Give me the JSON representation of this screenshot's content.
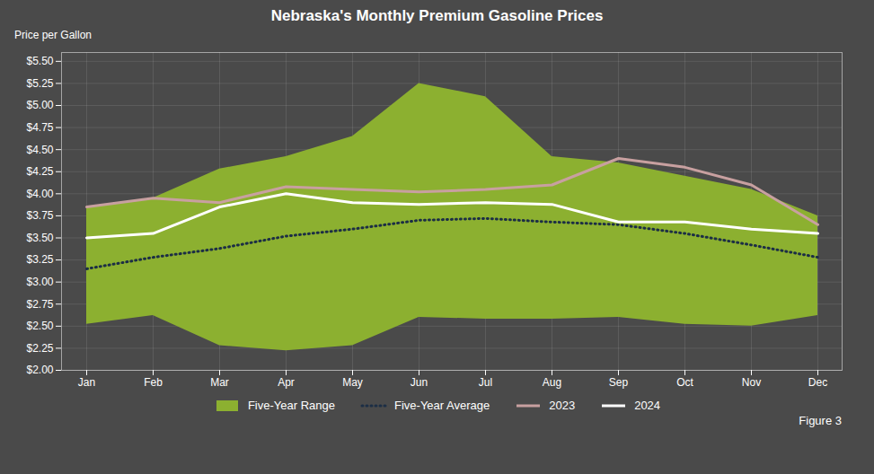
{
  "chart_data": {
    "type": "line",
    "title": "Nebraska's Monthly Premium Gasoline Prices",
    "ylabel": "Price per Gallon",
    "categories": [
      "Jan",
      "Feb",
      "Mar",
      "Apr",
      "May",
      "Jun",
      "Jul",
      "Aug",
      "Sep",
      "Oct",
      "Nov",
      "Dec"
    ],
    "series": [
      {
        "name": "Five-Year Range",
        "type": "area",
        "color": "#8cb030",
        "lower": [
          2.52,
          2.62,
          2.28,
          2.22,
          2.28,
          2.6,
          2.58,
          2.58,
          2.6,
          2.52,
          2.5,
          2.62
        ],
        "upper": [
          3.85,
          3.95,
          4.28,
          4.42,
          4.65,
          5.25,
          5.1,
          4.42,
          4.35,
          4.2,
          4.05,
          3.75
        ]
      },
      {
        "name": "Five-Year Average",
        "type": "line",
        "color": "#1c2e45",
        "line_style": "dotted",
        "values": [
          3.15,
          3.28,
          3.38,
          3.52,
          3.6,
          3.7,
          3.72,
          3.68,
          3.65,
          3.55,
          3.42,
          3.28
        ]
      },
      {
        "name": "2023",
        "type": "line",
        "color": "#c8a0a0",
        "line_style": "solid",
        "values": [
          3.85,
          3.95,
          3.9,
          4.08,
          4.05,
          4.02,
          4.05,
          4.1,
          4.4,
          4.3,
          4.1,
          3.65
        ]
      },
      {
        "name": "2024",
        "type": "line",
        "color": "#ffffff",
        "line_style": "solid",
        "values": [
          3.5,
          3.55,
          3.85,
          4.0,
          3.9,
          3.88,
          3.9,
          3.88,
          3.68,
          3.68,
          3.6,
          3.55
        ]
      }
    ],
    "ylim": [
      2.0,
      5.6
    ],
    "yticks": [
      {
        "value": 2.0,
        "label": "$2.00"
      },
      {
        "value": 2.25,
        "label": "$2.25"
      },
      {
        "value": 2.5,
        "label": "$2.50"
      },
      {
        "value": 2.75,
        "label": "$2.75"
      },
      {
        "value": 3.0,
        "label": "$3.00"
      },
      {
        "value": 3.25,
        "label": "$3.25"
      },
      {
        "value": 3.5,
        "label": "$3.50"
      },
      {
        "value": 3.75,
        "label": "$3.75"
      },
      {
        "value": 4.0,
        "label": "$4.00"
      },
      {
        "value": 4.25,
        "label": "$4.25"
      },
      {
        "value": 4.5,
        "label": "$4.50"
      },
      {
        "value": 4.75,
        "label": "$4.75"
      },
      {
        "value": 5.0,
        "label": "$5.00"
      },
      {
        "value": 5.25,
        "label": "$5.25"
      },
      {
        "value": 5.5,
        "label": "$5.50"
      }
    ],
    "grid": true,
    "legend": "bottom",
    "annotations": [
      "Figure 3"
    ]
  }
}
